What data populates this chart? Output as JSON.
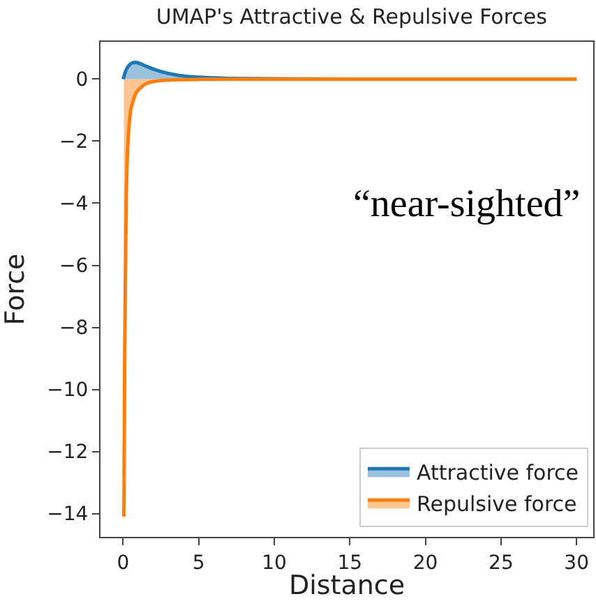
{
  "chart_data": {
    "type": "area",
    "title": "UMAP's Attractive & Repulsive Forces",
    "xlabel": "Distance",
    "ylabel": "Force",
    "annotations": [
      "“near-sighted”"
    ],
    "series": [
      {
        "name": "Attractive force",
        "color": "#1f77b4",
        "x": [
          0,
          0.2,
          0.4,
          0.6,
          0.8,
          1,
          1.5,
          2,
          3,
          4,
          5,
          6,
          7,
          10,
          15,
          20,
          30
        ],
        "values": [
          0,
          0.3,
          0.45,
          0.52,
          0.54,
          0.52,
          0.42,
          0.32,
          0.18,
          0.1,
          0.06,
          0.04,
          0.02,
          0.01,
          0,
          0,
          0
        ]
      },
      {
        "name": "Repulsive force",
        "color": "#ff7f0e",
        "x": [
          0.05,
          0.1,
          0.2,
          0.3,
          0.5,
          0.8,
          1,
          1.5,
          2,
          3,
          5,
          10,
          20,
          30
        ],
        "values": [
          -14.1,
          -9,
          -4,
          -2.2,
          -1,
          -0.5,
          -0.35,
          -0.15,
          -0.08,
          -0.03,
          -0.01,
          0,
          0,
          0
        ]
      }
    ],
    "xlim": [
      -1.5,
      31.1
    ],
    "xticks": [
      0,
      5,
      10,
      15,
      20,
      25,
      30
    ],
    "ylim": [
      -14.75,
      1.2
    ],
    "yticks": [
      {
        "value": -14,
        "label": "−14"
      },
      {
        "value": -12,
        "label": "−12"
      },
      {
        "value": -10,
        "label": "−10"
      },
      {
        "value": -8,
        "label": "−8"
      },
      {
        "value": -6,
        "label": "−6"
      },
      {
        "value": -4,
        "label": "−4"
      },
      {
        "value": -2,
        "label": "−2"
      },
      0
    ],
    "legend": "bottom right"
  }
}
